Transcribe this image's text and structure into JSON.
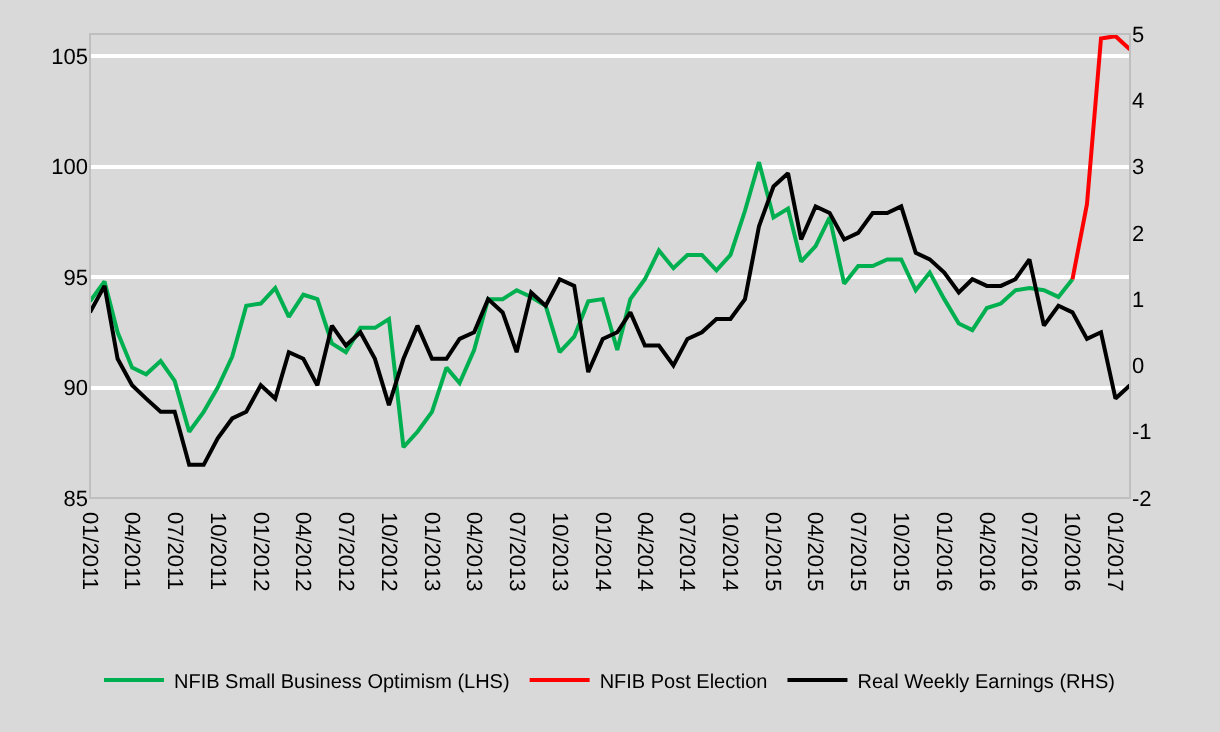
{
  "chart_data": {
    "type": "line",
    "x": [
      "2011-01",
      "2011-02",
      "2011-03",
      "2011-04",
      "2011-05",
      "2011-06",
      "2011-07",
      "2011-08",
      "2011-09",
      "2011-10",
      "2011-11",
      "2011-12",
      "2012-01",
      "2012-02",
      "2012-03",
      "2012-04",
      "2012-05",
      "2012-06",
      "2012-07",
      "2012-08",
      "2012-09",
      "2012-10",
      "2012-11",
      "2012-12",
      "2013-01",
      "2013-02",
      "2013-03",
      "2013-04",
      "2013-05",
      "2013-06",
      "2013-07",
      "2013-08",
      "2013-09",
      "2013-10",
      "2013-11",
      "2013-12",
      "2014-01",
      "2014-02",
      "2014-03",
      "2014-04",
      "2014-05",
      "2014-06",
      "2014-07",
      "2014-08",
      "2014-09",
      "2014-10",
      "2014-11",
      "2014-12",
      "2015-01",
      "2015-02",
      "2015-03",
      "2015-04",
      "2015-05",
      "2015-06",
      "2015-07",
      "2015-08",
      "2015-09",
      "2015-10",
      "2015-11",
      "2015-12",
      "2016-01",
      "2016-02",
      "2016-03",
      "2016-04",
      "2016-05",
      "2016-06",
      "2016-07",
      "2016-08",
      "2016-09",
      "2016-10",
      "2016-11",
      "2016-12",
      "2017-01",
      "2017-02"
    ],
    "series": [
      {
        "name": "NFIB Small Business Optimism (LHS)",
        "color": "#00b050",
        "values": [
          93.9,
          94.8,
          92.5,
          90.9,
          90.6,
          91.2,
          90.3,
          88.0,
          88.9,
          90.0,
          91.4,
          93.7,
          93.8,
          94.5,
          93.2,
          94.2,
          94.0,
          92.0,
          91.6,
          92.7,
          92.7,
          93.1,
          87.3,
          88.0,
          88.9,
          90.9,
          90.2,
          91.7,
          94.0,
          94.0,
          94.4,
          94.1,
          93.7,
          91.6,
          92.3,
          93.9,
          94.0,
          91.7,
          94.0,
          94.9,
          96.2,
          95.4,
          96.0,
          96.0,
          95.3,
          96.0,
          98.0,
          100.2,
          97.7,
          98.1,
          95.7,
          96.4,
          97.7,
          94.7,
          95.5,
          95.5,
          95.8,
          95.8,
          94.4,
          95.2,
          94.0,
          92.9,
          92.6,
          93.6,
          93.8,
          94.4,
          94.5,
          94.4,
          94.1,
          94.9,
          null,
          null,
          null,
          null
        ]
      },
      {
        "name": "NFIB Post Election",
        "color": "#ff0000",
        "values": [
          null,
          null,
          null,
          null,
          null,
          null,
          null,
          null,
          null,
          null,
          null,
          null,
          null,
          null,
          null,
          null,
          null,
          null,
          null,
          null,
          null,
          null,
          null,
          null,
          null,
          null,
          null,
          null,
          null,
          null,
          null,
          null,
          null,
          null,
          null,
          null,
          null,
          null,
          null,
          null,
          null,
          null,
          null,
          null,
          null,
          null,
          null,
          null,
          null,
          null,
          null,
          null,
          null,
          null,
          null,
          null,
          null,
          null,
          null,
          null,
          null,
          null,
          null,
          null,
          null,
          null,
          null,
          null,
          null,
          94.9,
          98.3,
          105.8,
          105.9,
          105.3
        ]
      },
      {
        "name": "Real Weekly Earnings (RHS)",
        "color": "#000000",
        "axis": "y2",
        "values": [
          0.8,
          1.2,
          0.1,
          -0.3,
          -0.5,
          -0.7,
          -0.7,
          -1.5,
          -1.5,
          -1.1,
          -0.8,
          -0.7,
          -0.3,
          -0.5,
          0.2,
          0.1,
          -0.3,
          0.6,
          0.3,
          0.5,
          0.1,
          -0.6,
          0.1,
          0.6,
          0.1,
          0.1,
          0.4,
          0.5,
          1.0,
          0.8,
          0.2,
          1.1,
          0.9,
          1.3,
          1.2,
          -0.1,
          0.4,
          0.5,
          0.8,
          0.3,
          0.3,
          0.0,
          0.4,
          0.5,
          0.7,
          0.7,
          1.0,
          2.1,
          2.7,
          2.9,
          1.9,
          2.4,
          2.3,
          1.9,
          2.0,
          2.3,
          2.3,
          2.4,
          1.7,
          1.6,
          1.4,
          1.1,
          1.3,
          1.2,
          1.2,
          1.3,
          1.6,
          0.6,
          0.9,
          0.8,
          0.4,
          0.5,
          -0.5,
          -0.3
        ]
      }
    ],
    "xlim": [
      "2011-01",
      "2017-02"
    ],
    "xticks": [
      {
        "value": "2011-01",
        "label": "01/2011"
      },
      {
        "value": "2011-04",
        "label": "04/2011"
      },
      {
        "value": "2011-07",
        "label": "07/2011"
      },
      {
        "value": "2011-10",
        "label": "10/2011"
      },
      {
        "value": "2012-01",
        "label": "01/2012"
      },
      {
        "value": "2012-04",
        "label": "04/2012"
      },
      {
        "value": "2012-07",
        "label": "07/2012"
      },
      {
        "value": "2012-10",
        "label": "10/2012"
      },
      {
        "value": "2013-01",
        "label": "01/2013"
      },
      {
        "value": "2013-04",
        "label": "04/2013"
      },
      {
        "value": "2013-07",
        "label": "07/2013"
      },
      {
        "value": "2013-10",
        "label": "10/2013"
      },
      {
        "value": "2014-01",
        "label": "01/2014"
      },
      {
        "value": "2014-04",
        "label": "04/2014"
      },
      {
        "value": "2014-07",
        "label": "07/2014"
      },
      {
        "value": "2014-10",
        "label": "10/2014"
      },
      {
        "value": "2015-01",
        "label": "01/2015"
      },
      {
        "value": "2015-04",
        "label": "04/2015"
      },
      {
        "value": "2015-07",
        "label": "07/2015"
      },
      {
        "value": "2015-10",
        "label": "10/2015"
      },
      {
        "value": "2016-01",
        "label": "01/2016"
      },
      {
        "value": "2016-04",
        "label": "04/2016"
      },
      {
        "value": "2016-07",
        "label": "07/2016"
      },
      {
        "value": "2016-10",
        "label": "10/2016"
      },
      {
        "value": "2017-01",
        "label": "01/2017"
      }
    ],
    "ylim": [
      85,
      106
    ],
    "yticks": [
      85,
      90,
      95,
      100,
      105
    ],
    "y2lim": [
      -2,
      5
    ],
    "y2ticks": [
      -2,
      -1,
      0,
      1,
      2,
      3,
      4,
      5
    ],
    "grid": "y",
    "legend": "bottom",
    "marker": "none",
    "line_style": "solid"
  }
}
